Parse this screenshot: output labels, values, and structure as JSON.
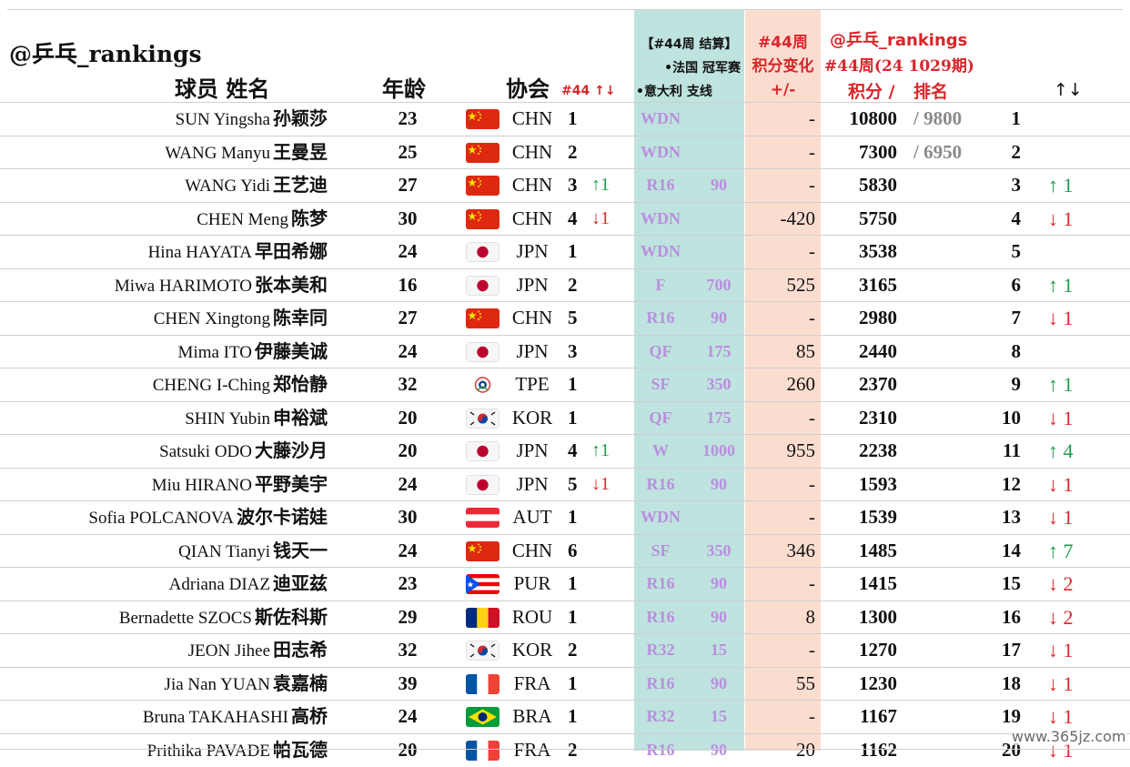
{
  "header": {
    "brand": "@乒乓_rankings",
    "player": "球员 姓名",
    "age": "年龄",
    "assoc": "协会",
    "assoc_rank": "#44 ↑↓",
    "event_l1": "【#44周 结算】",
    "event_l2": "•法国 冠军赛",
    "event_l3": "•意大利 支线",
    "change_l1": "#44周",
    "change_l2": "积分变化",
    "change_l3": "+/-",
    "current_l1": "@乒乓_rankings",
    "current_l2": "#44周(24 1029期)",
    "points": "积分 /",
    "rank": "排名",
    "move": "↑↓"
  },
  "rows": [
    {
      "en": "SUN Yingsha",
      "zh": "孙颖莎",
      "age": "23",
      "flag": "china-flag",
      "assoc": "CHN",
      "arank": "1",
      "achg": "",
      "achg_dir": "",
      "stage": "WDN",
      "epts": "",
      "change": "-",
      "pts": "10800",
      "prev": "/ 9800",
      "rank": "1",
      "move": "",
      "move_dir": ""
    },
    {
      "en": "WANG Manyu",
      "zh": "王曼昱",
      "age": "25",
      "flag": "china-flag",
      "assoc": "CHN",
      "arank": "2",
      "achg": "",
      "achg_dir": "",
      "stage": "WDN",
      "epts": "",
      "change": "-",
      "pts": "7300",
      "prev": "/ 6950",
      "rank": "2",
      "move": "",
      "move_dir": ""
    },
    {
      "en": "WANG Yidi",
      "zh": "王艺迪",
      "age": "27",
      "flag": "china-flag",
      "assoc": "CHN",
      "arank": "3",
      "achg": "↑1",
      "achg_dir": "up",
      "stage": "R16",
      "epts": "90",
      "change": "-",
      "pts": "5830",
      "prev": "",
      "rank": "3",
      "move": "↑ 1",
      "move_dir": "up"
    },
    {
      "en": "CHEN Meng",
      "zh": "陈梦",
      "age": "30",
      "flag": "china-flag",
      "assoc": "CHN",
      "arank": "4",
      "achg": "↓1",
      "achg_dir": "down",
      "stage": "WDN",
      "epts": "",
      "change": "-420",
      "pts": "5750",
      "prev": "",
      "rank": "4",
      "move": "↓ 1",
      "move_dir": "down"
    },
    {
      "en": "Hina HAYATA",
      "zh": "早田希娜",
      "age": "24",
      "flag": "japan-flag",
      "assoc": "JPN",
      "arank": "1",
      "achg": "",
      "achg_dir": "",
      "stage": "WDN",
      "epts": "",
      "change": "-",
      "pts": "3538",
      "prev": "",
      "rank": "5",
      "move": "",
      "move_dir": ""
    },
    {
      "en": "Miwa HARIMOTO",
      "zh": "张本美和",
      "age": "16",
      "flag": "japan-flag",
      "assoc": "JPN",
      "arank": "2",
      "achg": "",
      "achg_dir": "",
      "stage": "F",
      "epts": "700",
      "change": "525",
      "pts": "3165",
      "prev": "",
      "rank": "6",
      "move": "↑ 1",
      "move_dir": "up"
    },
    {
      "en": "CHEN Xingtong",
      "zh": "陈幸同",
      "age": "27",
      "flag": "china-flag",
      "assoc": "CHN",
      "arank": "5",
      "achg": "",
      "achg_dir": "",
      "stage": "R16",
      "epts": "90",
      "change": "-",
      "pts": "2980",
      "prev": "",
      "rank": "7",
      "move": "↓ 1",
      "move_dir": "down"
    },
    {
      "en": "Mima ITO",
      "zh": "伊藤美诚",
      "age": "24",
      "flag": "japan-flag",
      "assoc": "JPN",
      "arank": "3",
      "achg": "",
      "achg_dir": "",
      "stage": "QF",
      "epts": "175",
      "change": "85",
      "pts": "2440",
      "prev": "",
      "rank": "8",
      "move": "",
      "move_dir": ""
    },
    {
      "en": "CHENG I-Ching",
      "zh": "郑怡静",
      "age": "32",
      "flag": "tpe-flag",
      "assoc": "TPE",
      "arank": "1",
      "achg": "",
      "achg_dir": "",
      "stage": "SF",
      "epts": "350",
      "change": "260",
      "pts": "2370",
      "prev": "",
      "rank": "9",
      "move": "↑ 1",
      "move_dir": "up"
    },
    {
      "en": "SHIN Yubin",
      "zh": "申裕斌",
      "age": "20",
      "flag": "korea-flag",
      "assoc": "KOR",
      "arank": "1",
      "achg": "",
      "achg_dir": "",
      "stage": "QF",
      "epts": "175",
      "change": "-",
      "pts": "2310",
      "prev": "",
      "rank": "10",
      "move": "↓ 1",
      "move_dir": "down"
    },
    {
      "en": "Satsuki ODO",
      "zh": "大藤沙月",
      "age": "20",
      "flag": "japan-flag",
      "assoc": "JPN",
      "arank": "4",
      "achg": "↑1",
      "achg_dir": "up",
      "stage": "W",
      "epts": "1000",
      "change": "955",
      "pts": "2238",
      "prev": "",
      "rank": "11",
      "move": "↑ 4",
      "move_dir": "up"
    },
    {
      "en": "Miu HIRANO",
      "zh": "平野美宇",
      "age": "24",
      "flag": "japan-flag",
      "assoc": "JPN",
      "arank": "5",
      "achg": "↓1",
      "achg_dir": "down",
      "stage": "R16",
      "epts": "90",
      "change": "-",
      "pts": "1593",
      "prev": "",
      "rank": "12",
      "move": "↓ 1",
      "move_dir": "down"
    },
    {
      "en": "Sofia POLCANOVA",
      "zh": "波尔卡诺娃",
      "age": "30",
      "flag": "austria-flag",
      "assoc": "AUT",
      "arank": "1",
      "achg": "",
      "achg_dir": "",
      "stage": "WDN",
      "epts": "",
      "change": "-",
      "pts": "1539",
      "prev": "",
      "rank": "13",
      "move": "↓ 1",
      "move_dir": "down"
    },
    {
      "en": "QIAN Tianyi",
      "zh": "钱天一",
      "age": "24",
      "flag": "china-flag",
      "assoc": "CHN",
      "arank": "6",
      "achg": "",
      "achg_dir": "",
      "stage": "SF",
      "epts": "350",
      "change": "346",
      "pts": "1485",
      "prev": "",
      "rank": "14",
      "move": "↑ 7",
      "move_dir": "up"
    },
    {
      "en": "Adriana DIAZ",
      "zh": "迪亚兹",
      "age": "23",
      "flag": "puerto-rico-flag",
      "assoc": "PUR",
      "arank": "1",
      "achg": "",
      "achg_dir": "",
      "stage": "R16",
      "epts": "90",
      "change": "-",
      "pts": "1415",
      "prev": "",
      "rank": "15",
      "move": "↓ 2",
      "move_dir": "down"
    },
    {
      "en": "Bernadette SZOCS",
      "zh": "斯佐科斯",
      "age": "29",
      "flag": "romania-flag",
      "assoc": "ROU",
      "arank": "1",
      "achg": "",
      "achg_dir": "",
      "stage": "R16",
      "epts": "90",
      "change": "8",
      "pts": "1300",
      "prev": "",
      "rank": "16",
      "move": "↓ 2",
      "move_dir": "down"
    },
    {
      "en": "JEON Jihee",
      "zh": "田志希",
      "age": "32",
      "flag": "korea-flag",
      "assoc": "KOR",
      "arank": "2",
      "achg": "",
      "achg_dir": "",
      "stage": "R32",
      "epts": "15",
      "change": "-",
      "pts": "1270",
      "prev": "",
      "rank": "17",
      "move": "↓ 1",
      "move_dir": "down"
    },
    {
      "en": "Jia Nan YUAN",
      "zh": "袁嘉楠",
      "age": "39",
      "flag": "france-flag",
      "assoc": "FRA",
      "arank": "1",
      "achg": "",
      "achg_dir": "",
      "stage": "R16",
      "epts": "90",
      "change": "55",
      "pts": "1230",
      "prev": "",
      "rank": "18",
      "move": "↓ 1",
      "move_dir": "down"
    },
    {
      "en": "Bruna TAKAHASHI",
      "zh": "高桥",
      "age": "24",
      "flag": "brazil-flag",
      "assoc": "BRA",
      "arank": "1",
      "achg": "",
      "achg_dir": "",
      "stage": "R32",
      "epts": "15",
      "change": "-",
      "pts": "1167",
      "prev": "",
      "rank": "19",
      "move": "↓ 1",
      "move_dir": "down"
    },
    {
      "en": "Prithika PAVADE",
      "zh": "帕瓦德",
      "age": "20",
      "flag": "france-flag",
      "assoc": "FRA",
      "arank": "2",
      "achg": "",
      "achg_dir": "",
      "stage": "R16",
      "epts": "90",
      "change": "20",
      "pts": "1162",
      "prev": "",
      "rank": "20",
      "move": "↓ 1",
      "move_dir": "down"
    }
  ],
  "watermark": "www.365jz.com",
  "colors": {
    "teal_band": "#bfe3df",
    "peach_band": "#fbddd0",
    "accent_red": "#d8262a",
    "up_green": "#1e9a4a",
    "stage_purple": "#b98fde"
  }
}
